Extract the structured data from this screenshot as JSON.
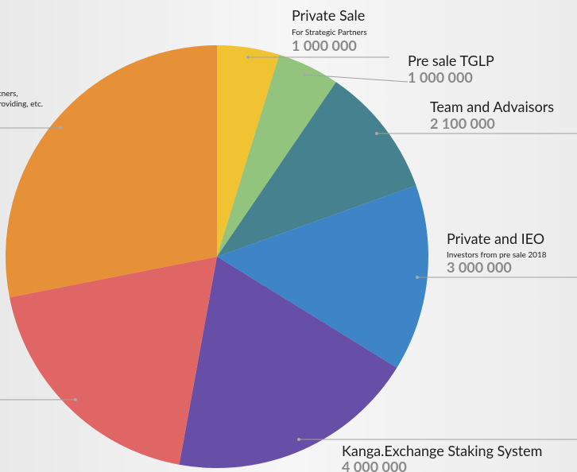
{
  "chart_data": {
    "type": "pie",
    "categories": [
      "Private Sale",
      "Pre sale TGLP",
      "Team and Advaisors",
      "Private and IEO",
      "Kanga.Exchange Staking System",
      null,
      null
    ],
    "descriptions": [
      [
        "For Strategic Partners"
      ],
      null,
      null,
      [
        "Investors from pre sale 2018"
      ],
      null,
      null,
      [
        "tners,",
        "roviding, etc."
      ]
    ],
    "values": [
      1000000,
      1000000,
      2100000,
      3000000,
      4000000,
      4000000,
      5900000
    ],
    "value_labels": [
      "1 000 000",
      "1 000 000",
      "2 100 000",
      "3 000 000",
      "4 000 000",
      null,
      null
    ],
    "colors": [
      "#f1c232",
      "#93c47d",
      "#45818e",
      "#3d85c6",
      "#674ea7",
      "#e06666",
      "#e69138"
    ]
  }
}
